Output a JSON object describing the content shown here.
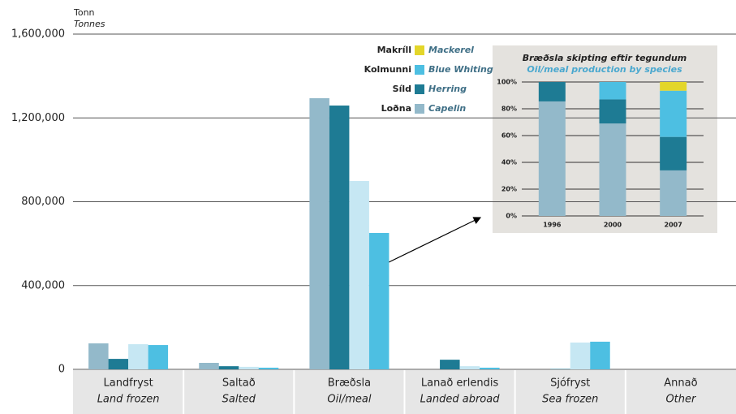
{
  "chart_data": [
    {
      "type": "bar",
      "y_label": "Tonn",
      "y_label_en": "Tonnes",
      "categories": [
        "Landfryst",
        "Saltað",
        "Bræðsla",
        "Lanað erlendis",
        "Sjófryst",
        "Annað"
      ],
      "categories_en": [
        "Land frozen",
        "Salted",
        "Oil/meal",
        "Landed abroad",
        "Sea frozen",
        "Other"
      ],
      "series": [
        {
          "color": "#93b9ca",
          "values": [
            124000,
            31000,
            1294000,
            0,
            0,
            0
          ]
        },
        {
          "color": "#1e7b94",
          "values": [
            50000,
            15000,
            1259000,
            46000,
            2000,
            0
          ]
        },
        {
          "color": "#c6e7f3",
          "values": [
            120000,
            12000,
            899000,
            15000,
            128000,
            0
          ]
        },
        {
          "color": "#4dbfe2",
          "values": [
            116000,
            8000,
            651000,
            8000,
            132000,
            0
          ]
        }
      ],
      "ylim": [
        0,
        1600000
      ],
      "yticks": [
        0,
        {
          "value": 400000,
          "label": "400,000"
        },
        {
          "value": 800000,
          "label": "800,000"
        },
        {
          "value": 1200000,
          "label": "1,200,000"
        },
        {
          "value": 1600000,
          "label": "1,600,000"
        }
      ],
      "grid": true
    },
    {
      "type": "stacked_bar",
      "title": "Bræðsla skipting eftir tegundum",
      "subtitle": "Oil/meal production by species",
      "categories": [
        "1996",
        "2000",
        "2007"
      ],
      "series": [
        {
          "name": "Loðna",
          "name_en": "Capelin",
          "color": "#93b9ca",
          "values": [
            85.5,
            69,
            34
          ]
        },
        {
          "name": "Síld",
          "name_en": "Herring",
          "color": "#1e7b94",
          "values": [
            14.5,
            18,
            25
          ]
        },
        {
          "name": "Kolmunni",
          "name_en": "Blue Whiting",
          "color": "#4dbfe2",
          "values": [
            0,
            13,
            34.5
          ]
        },
        {
          "name": "Makríll",
          "name_en": "Mackerel",
          "color": "#e3d62a",
          "values": [
            0,
            0,
            6.5
          ]
        }
      ],
      "ylim": [
        0,
        100
      ],
      "yticks": [
        {
          "value": 0,
          "label": "0%"
        },
        {
          "value": 20,
          "label": "20%"
        },
        {
          "value": 40,
          "label": "40%"
        },
        {
          "value": 60,
          "label": "60%"
        },
        {
          "value": 80,
          "label": "80%"
        },
        {
          "value": 100,
          "label": "100%"
        }
      ],
      "grid": true
    }
  ]
}
